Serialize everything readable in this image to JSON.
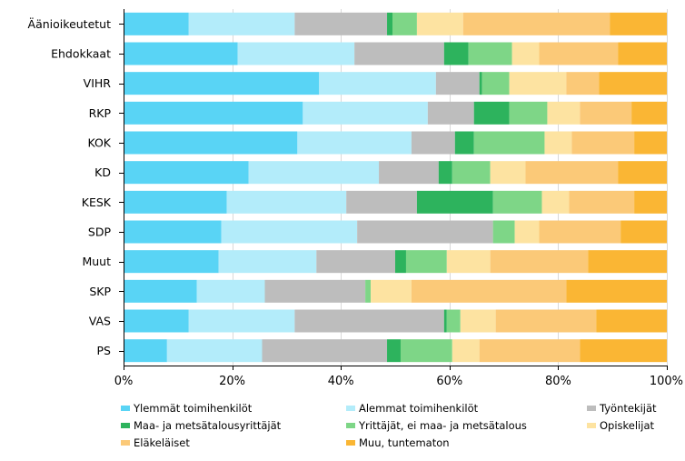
{
  "chart_data": {
    "type": "bar",
    "orientation": "horizontal",
    "stacked": true,
    "normalized": true,
    "categories": [
      "Äänioikeutetut",
      "Ehdokkaat",
      "VIHR",
      "RKP",
      "KOK",
      "KD",
      "KESK",
      "SDP",
      "Muut",
      "SKP",
      "VAS",
      "PS"
    ],
    "xlim": [
      0,
      100
    ],
    "xticks": [
      "0%",
      "20%",
      "40%",
      "60%",
      "80%",
      "100%"
    ],
    "grid": true,
    "legend_position": "bottom",
    "series": [
      {
        "name": "Ylemmät toimihenkilöt",
        "color": "#59d4f5",
        "values": [
          12,
          21,
          36,
          33,
          32,
          23,
          19,
          18,
          17.5,
          13.5,
          12,
          8
        ]
      },
      {
        "name": "Alemmat toimihenkilöt",
        "color": "#b3ecfa",
        "values": [
          19.5,
          21.5,
          21.5,
          23,
          21,
          24,
          22,
          25,
          18,
          12.5,
          19.5,
          17.5
        ]
      },
      {
        "name": "Työntekijät",
        "color": "#bdbdbd",
        "values": [
          17,
          16.5,
          8,
          8.5,
          8,
          11,
          13,
          25,
          14.5,
          18.5,
          27.5,
          23
        ]
      },
      {
        "name": "Maa- ja metsätalousyrittäjät",
        "color": "#2db35d",
        "values": [
          1,
          4.5,
          0.5,
          6.5,
          3.5,
          2.5,
          14,
          0,
          2,
          0,
          0.5,
          2.5
        ]
      },
      {
        "name": "Yrittäjät, ei maa- ja metsätalous",
        "color": "#7ed687",
        "values": [
          4.5,
          8,
          5,
          7,
          13,
          7,
          9,
          4,
          7.5,
          1,
          2.5,
          9.5
        ]
      },
      {
        "name": "Opiskelijat",
        "color": "#fde3a1",
        "values": [
          8.5,
          5,
          10.5,
          6,
          5,
          6.5,
          5,
          4.5,
          8,
          7.5,
          6.5,
          5
        ]
      },
      {
        "name": "Eläkeläiset",
        "color": "#fbc978",
        "values": [
          27,
          14.5,
          6,
          9.5,
          11.5,
          17,
          12,
          15,
          18,
          28.5,
          18.5,
          18.5
        ]
      },
      {
        "name": "Muu, tuntematon",
        "color": "#fab634",
        "values": [
          10.5,
          9,
          12.5,
          6.5,
          6,
          9,
          6,
          8.5,
          14.5,
          18.5,
          13,
          16
        ]
      }
    ]
  }
}
